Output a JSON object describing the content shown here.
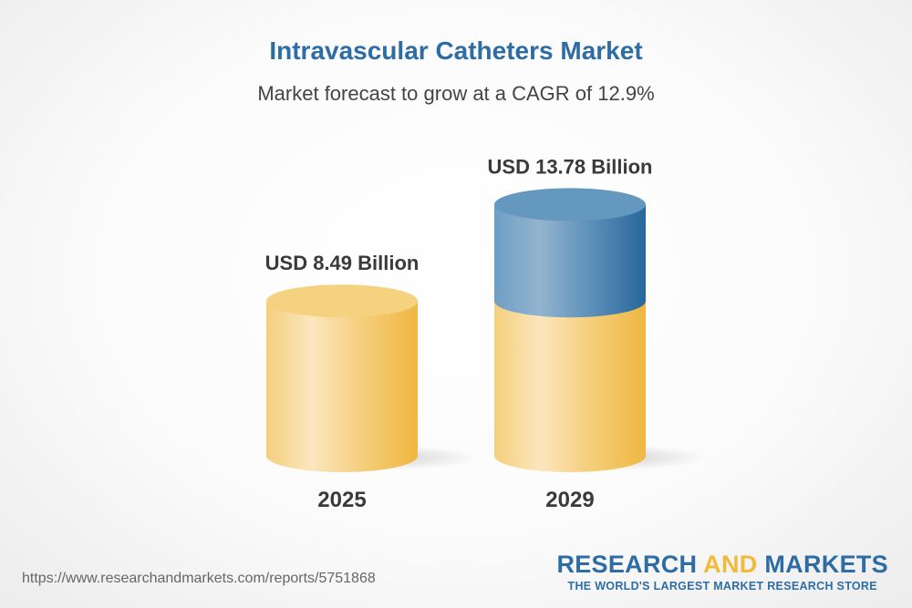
{
  "chart_data": {
    "type": "bar",
    "style": "3d-cylinder",
    "title": "Intravascular Catheters Market",
    "subtitle": "Market forecast to grow at a CAGR of 12.9%",
    "categories": [
      "2025",
      "2029"
    ],
    "values": [
      8.49,
      13.78
    ],
    "data_labels": [
      "USD 8.49 Billion",
      "USD 13.78 Billion"
    ],
    "colors": {
      "base": "#f2c45a",
      "growth": "#3f7fb0",
      "title": "#2e6da4"
    }
  },
  "footer": {
    "url": "https://www.researchandmarkets.com/reports/5751868",
    "logo": {
      "word1": "RESEARCH",
      "word2": "AND",
      "word3": "MARKETS",
      "tagline": "THE WORLD'S LARGEST MARKET RESEARCH STORE"
    }
  }
}
